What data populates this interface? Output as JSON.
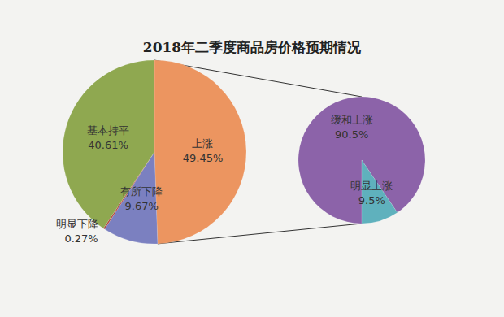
{
  "chart_data": [
    {
      "type": "pie",
      "title": "2018年二季度商品房价格预期情况",
      "categories": [
        "上涨",
        "有所下降",
        "明显下降",
        "基本持平"
      ],
      "values": [
        49.45,
        9.67,
        0.27,
        40.61
      ],
      "value_labels": [
        "49.45%",
        "9.67%",
        "0.27%",
        "40.61%"
      ],
      "colors": [
        "#ec9560",
        "#7b80c0",
        "#b5483f",
        "#8fa850"
      ],
      "data_labels": true
    },
    {
      "type": "pie",
      "categories": [
        "缓和上涨",
        "明显上涨"
      ],
      "values": [
        90.5,
        9.5
      ],
      "value_labels": [
        "90.5%",
        "9.5%"
      ],
      "colors": [
        "#8c63a9",
        "#5fb1bd"
      ],
      "data_labels": true
    }
  ]
}
